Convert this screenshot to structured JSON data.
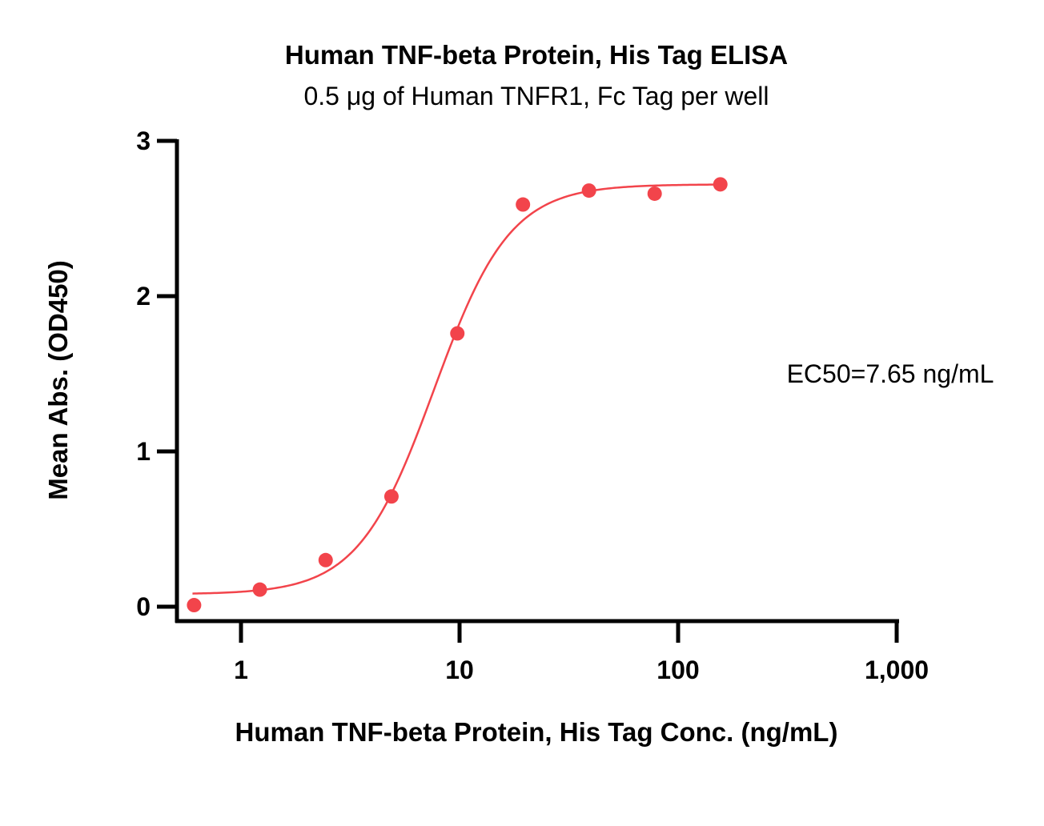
{
  "chart_data": {
    "type": "scatter",
    "title": "Human TNF-beta Protein, His Tag ELISA",
    "subtitle": "0.5 μg of Human TNFR1, Fc Tag per well",
    "xlabel": "Human TNF-beta Protein, His Tag Conc. (ng/mL)",
    "ylabel": "Mean Abs. (OD450)",
    "x_scale": "log",
    "xlim": [
      0.6,
      1000
    ],
    "ylim": [
      0,
      3
    ],
    "x_ticks": [
      1,
      10,
      100,
      1000
    ],
    "x_tick_labels": [
      "1",
      "10",
      "100",
      "1,000"
    ],
    "y_ticks": [
      0,
      1,
      2,
      3
    ],
    "y_tick_labels": [
      "0",
      "1",
      "2",
      "3"
    ],
    "series": [
      {
        "color": "#f2444b",
        "x": [
          0.61,
          1.22,
          2.44,
          4.88,
          9.77,
          19.5,
          39.1,
          78.1,
          156
        ],
        "y": [
          0.01,
          0.11,
          0.3,
          0.71,
          1.76,
          2.59,
          2.68,
          2.66,
          2.72
        ]
      }
    ],
    "fit": {
      "type": "4PL",
      "color": "#f2444b",
      "bottom": 0.08,
      "top": 2.72,
      "ec50": 7.65,
      "hill": 2.5,
      "x_range": [
        0.6,
        156
      ]
    },
    "annotation": "EC50=7.65 ng/mL",
    "grid": false,
    "legend": "none"
  }
}
